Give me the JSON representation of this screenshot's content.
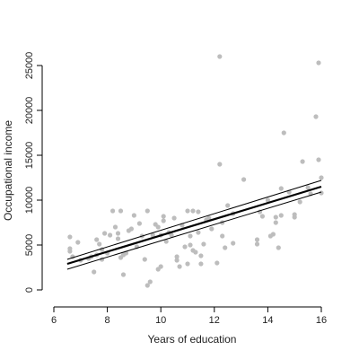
{
  "chart_data": {
    "type": "scatter",
    "xlabel": "Years of education",
    "ylabel": "Occupational income",
    "xlim": [
      6,
      16
    ],
    "ylim": [
      0,
      25000
    ],
    "x_ticks": [
      6,
      8,
      10,
      12,
      14,
      16
    ],
    "y_ticks": [
      0,
      5000,
      10000,
      15000,
      20000,
      25000
    ],
    "x_tick_labels": [
      "6",
      "8",
      "10",
      "12",
      "14",
      "16"
    ],
    "y_tick_labels": [
      "0",
      "5000",
      "10000",
      "15000",
      "20000",
      "25000"
    ],
    "grid": false,
    "points": [
      [
        6.6,
        5900
      ],
      [
        6.6,
        4600
      ],
      [
        6.6,
        4300
      ],
      [
        6.7,
        3700
      ],
      [
        6.9,
        5300
      ],
      [
        7.0,
        3300
      ],
      [
        7.3,
        3500
      ],
      [
        7.4,
        3700
      ],
      [
        7.5,
        2000
      ],
      [
        7.6,
        3900
      ],
      [
        7.6,
        5600
      ],
      [
        7.7,
        5100
      ],
      [
        7.8,
        3400
      ],
      [
        7.8,
        4500
      ],
      [
        7.9,
        6300
      ],
      [
        8.0,
        4100
      ],
      [
        8.1,
        6100
      ],
      [
        8.2,
        8800
      ],
      [
        8.3,
        7000
      ],
      [
        8.4,
        5700
      ],
      [
        8.4,
        6300
      ],
      [
        8.5,
        8800
      ],
      [
        8.5,
        3600
      ],
      [
        8.6,
        3900
      ],
      [
        8.6,
        1700
      ],
      [
        8.7,
        4100
      ],
      [
        8.8,
        6600
      ],
      [
        8.9,
        6800
      ],
      [
        9.0,
        8300
      ],
      [
        9.1,
        4800
      ],
      [
        9.2,
        7400
      ],
      [
        9.3,
        6000
      ],
      [
        9.4,
        3400
      ],
      [
        9.5,
        8800
      ],
      [
        9.5,
        500
      ],
      [
        9.6,
        900
      ],
      [
        9.7,
        6100
      ],
      [
        9.8,
        7300
      ],
      [
        9.9,
        7000
      ],
      [
        9.9,
        2300
      ],
      [
        10.0,
        2600
      ],
      [
        10.0,
        6100
      ],
      [
        10.1,
        8200
      ],
      [
        10.1,
        7700
      ],
      [
        10.2,
        5400
      ],
      [
        10.3,
        6400
      ],
      [
        10.4,
        6100
      ],
      [
        10.5,
        8000
      ],
      [
        10.6,
        3700
      ],
      [
        10.6,
        3300
      ],
      [
        10.7,
        2600
      ],
      [
        10.8,
        7200
      ],
      [
        10.9,
        4800
      ],
      [
        11.0,
        8800
      ],
      [
        11.0,
        2900
      ],
      [
        11.1,
        6000
      ],
      [
        11.1,
        5000
      ],
      [
        11.2,
        8800
      ],
      [
        11.2,
        4400
      ],
      [
        11.3,
        4200
      ],
      [
        11.4,
        8700
      ],
      [
        11.4,
        6400
      ],
      [
        11.5,
        3800
      ],
      [
        11.5,
        2900
      ],
      [
        11.6,
        5100
      ],
      [
        11.7,
        7800
      ],
      [
        11.8,
        8000
      ],
      [
        11.9,
        6800
      ],
      [
        12.1,
        3000
      ],
      [
        12.2,
        26000
      ],
      [
        12.2,
        14000
      ],
      [
        12.3,
        6000
      ],
      [
        12.3,
        7500
      ],
      [
        12.4,
        4700
      ],
      [
        12.5,
        9400
      ],
      [
        12.7,
        5200
      ],
      [
        12.7,
        8500
      ],
      [
        13.1,
        12300
      ],
      [
        13.6,
        5600
      ],
      [
        13.6,
        5100
      ],
      [
        13.7,
        8700
      ],
      [
        13.8,
        8200
      ],
      [
        14.0,
        10000
      ],
      [
        14.1,
        6000
      ],
      [
        14.2,
        6200
      ],
      [
        14.3,
        7500
      ],
      [
        14.3,
        8100
      ],
      [
        14.4,
        4700
      ],
      [
        14.5,
        8300
      ],
      [
        14.5,
        11300
      ],
      [
        14.6,
        17500
      ],
      [
        14.8,
        10900
      ],
      [
        15.0,
        8100
      ],
      [
        15.0,
        8400
      ],
      [
        15.2,
        9800
      ],
      [
        15.3,
        14300
      ],
      [
        15.5,
        11400
      ],
      [
        15.6,
        10700
      ],
      [
        15.8,
        19300
      ],
      [
        15.9,
        25300
      ],
      [
        15.9,
        14500
      ],
      [
        16.0,
        12500
      ],
      [
        16.0,
        10800
      ]
    ],
    "fit_line": [
      [
        6.5,
        2900
      ],
      [
        16.0,
        11500
      ]
    ],
    "ci_upper": [
      [
        6.5,
        3400
      ],
      [
        16.0,
        12200
      ]
    ],
    "ci_lower": [
      [
        6.5,
        2300
      ],
      [
        16.0,
        10900
      ]
    ],
    "colors": {
      "points": "#bdbdbd",
      "fit": "#000000",
      "ci": "#000000",
      "axis": "#000000"
    }
  }
}
